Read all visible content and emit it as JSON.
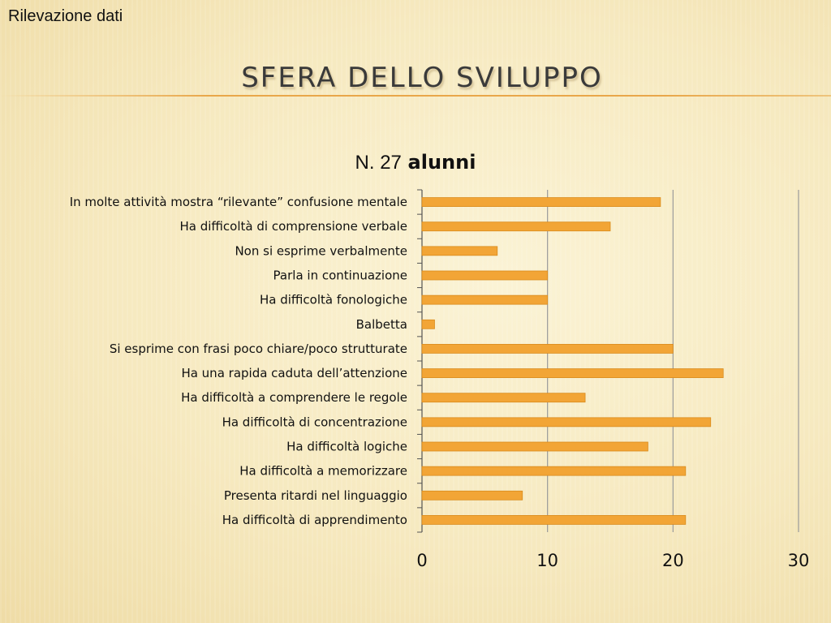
{
  "header": {
    "label": "Rilevazione dati"
  },
  "slide": {
    "title": "SFERA DELLO SVILUPPO"
  },
  "chart_title": {
    "prefix": "N. 27",
    "bold": "alunni"
  },
  "colors": {
    "bar": "#f2a536",
    "bar_edge": "#d98b1c",
    "grid": "#9a9a9a",
    "axis": "#555555"
  },
  "chart_data": {
    "type": "bar",
    "orientation": "horizontal",
    "title": "N. 27 alunni",
    "categories": [
      "In molte attività mostra “rilevante” confusione mentale",
      "Ha difficoltà di comprensione verbale",
      "Non si esprime verbalmente",
      "Parla in continuazione",
      "Ha difficoltà fonologiche",
      "Balbetta",
      "Si esprime con frasi poco chiare/poco strutturate",
      "Ha una rapida caduta dell’attenzione",
      "Ha difficoltà a comprendere le regole",
      "Ha difficoltà di concentrazione",
      "Ha difficoltà logiche",
      "Ha difficoltà a memorizzare",
      "Presenta ritardi nel linguaggio",
      "Ha difficoltà di apprendimento"
    ],
    "values": [
      19,
      15,
      6,
      10,
      10,
      1,
      20,
      24,
      13,
      23,
      18,
      21,
      8,
      21
    ],
    "xlim": [
      0,
      30
    ],
    "xticks": [
      "0",
      "10",
      "20",
      "30"
    ],
    "grid": "vertical",
    "legend": "none"
  }
}
